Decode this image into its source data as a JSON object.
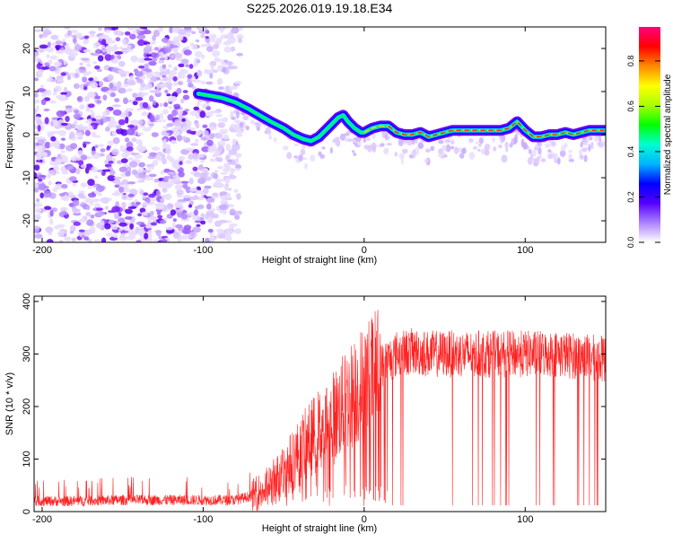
{
  "title": "S225.2026.019.19.18.E34",
  "chart_data": [
    {
      "type": "heatmap",
      "title": "S225.2026.019.19.18.E34",
      "xlabel": "Height of straight line (km)",
      "ylabel": "Frequency (Hz)",
      "xlim": [
        -205,
        150
      ],
      "ylim": [
        -25,
        25
      ],
      "x_ticks": [
        -200,
        -100,
        0,
        100
      ],
      "y_ticks": [
        -20,
        -10,
        0,
        10,
        20
      ],
      "x_tick_labels": [
        "-200",
        "-100",
        "0",
        "100"
      ],
      "y_tick_labels": [
        "-20",
        "-10",
        "0",
        "10",
        "20"
      ],
      "ridge": {
        "x": [
          -103,
          -95,
          -88,
          -80,
          -72,
          -65,
          -58,
          -50,
          -44,
          -38,
          -33,
          -28,
          -24,
          -20,
          -16,
          -13,
          -10,
          -6,
          -2,
          0,
          5,
          10,
          15,
          20,
          25,
          30,
          35,
          40,
          45,
          50,
          55,
          60,
          65,
          70,
          75,
          80,
          85,
          90,
          95,
          100,
          105,
          110,
          115,
          120,
          125,
          130,
          135,
          140,
          145,
          150
        ],
        "y": [
          9.5,
          9,
          8.5,
          7.5,
          6,
          4.5,
          3,
          1.5,
          0,
          -1,
          -1.5,
          -0.5,
          1,
          2.5,
          4,
          4.5,
          3,
          1.5,
          0.5,
          0.5,
          1.5,
          2,
          2,
          0.5,
          0,
          0,
          0.5,
          -0.5,
          0,
          0.5,
          1,
          1,
          1,
          1,
          1,
          1,
          1,
          1.5,
          3,
          1,
          -0.5,
          -0.5,
          0,
          0,
          0.5,
          0,
          0.5,
          1,
          1,
          1
        ]
      },
      "colorbar": {
        "label": "Normalized spectral amplitude",
        "min": 0.0,
        "max": 0.95,
        "ticks": [
          0.0,
          0.2,
          0.4,
          0.6,
          0.8
        ],
        "tick_labels": [
          "0.0",
          "0.2",
          "0.4",
          "0.6",
          "0.8"
        ],
        "colors": [
          "#ffffff",
          "#ab82ff",
          "#5500ff",
          "#0000ff",
          "#00b4ff",
          "#00ffd0",
          "#00ff00",
          "#aaff00",
          "#ffff00",
          "#ff8800",
          "#ff0000",
          "#ff0080"
        ]
      }
    },
    {
      "type": "line",
      "xlabel": "Height of straight line (km)",
      "ylabel": "SNR (10 * v/v)",
      "xlim": [
        -205,
        150
      ],
      "ylim": [
        0,
        410
      ],
      "x_ticks": [
        -200,
        -100,
        0,
        100
      ],
      "y_ticks": [
        0,
        100,
        200,
        300,
        400
      ],
      "x_tick_labels": [
        "-200",
        "-100",
        "0",
        "100"
      ],
      "y_tick_labels": [
        "0",
        "100",
        "200",
        "300",
        "400"
      ],
      "series": [
        {
          "name": "SNR",
          "color": "#ff2020",
          "envelope_x": [
            -205,
            -180,
            -150,
            -120,
            -100,
            -80,
            -70,
            -60,
            -50,
            -40,
            -30,
            -20,
            -10,
            0,
            10,
            20,
            30,
            40,
            60,
            80,
            100,
            120,
            150
          ],
          "envelope_y": [
            20,
            20,
            22,
            22,
            22,
            22,
            30,
            45,
            75,
            115,
            150,
            175,
            215,
            245,
            275,
            300,
            305,
            300,
            300,
            300,
            300,
            300,
            290
          ]
        }
      ]
    }
  ]
}
